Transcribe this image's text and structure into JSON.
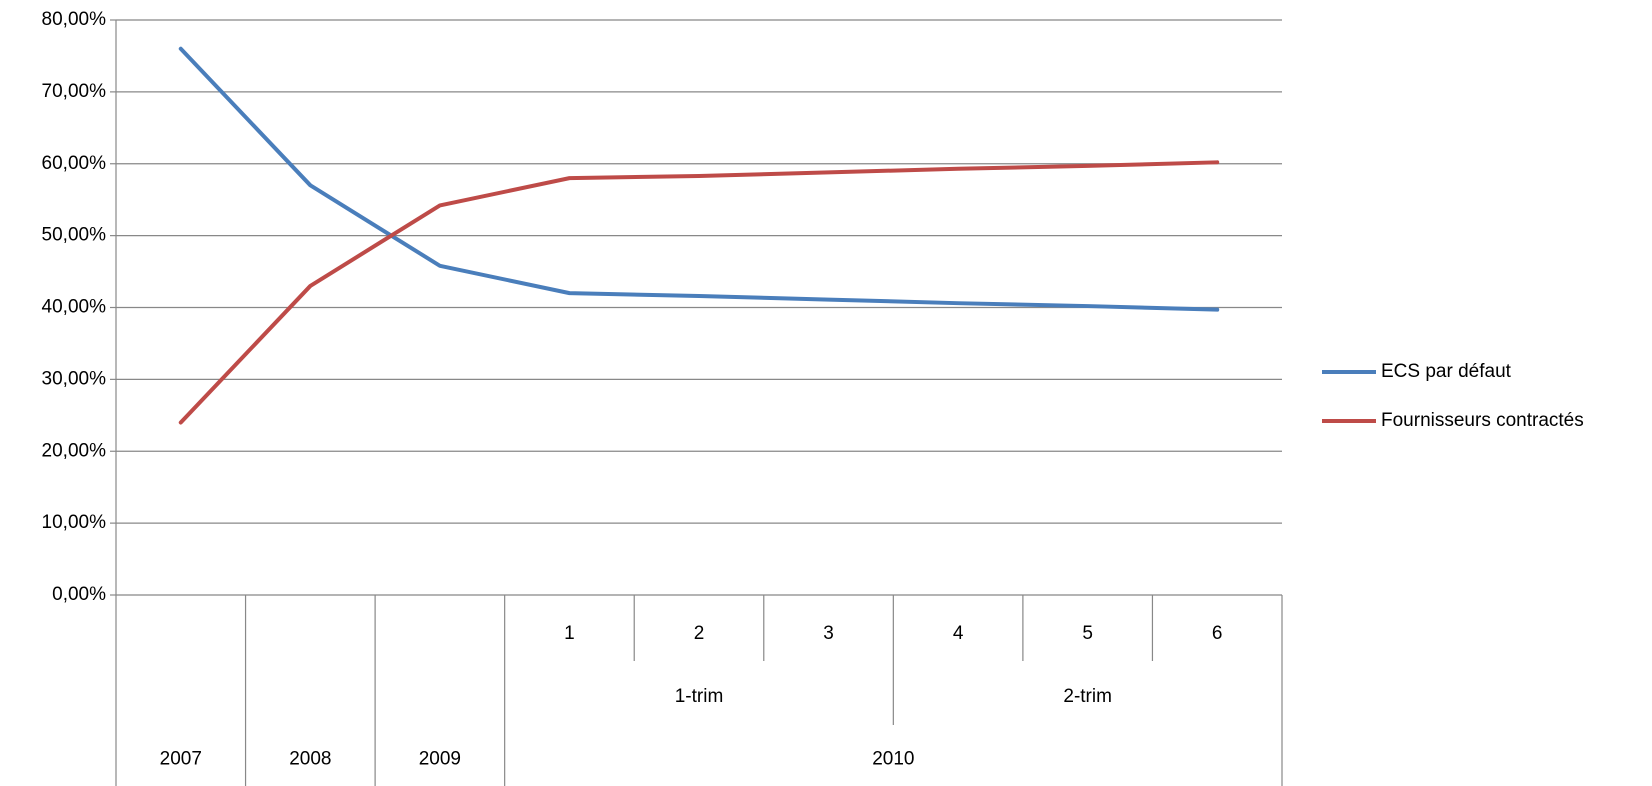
{
  "chart_data": {
    "type": "line",
    "categories": [
      null,
      null,
      null,
      "1",
      "2",
      "3",
      "4",
      "5",
      "6"
    ],
    "quarters": [
      null,
      null,
      null,
      "1-trim",
      "1-trim",
      "1-trim",
      "2-trim",
      "2-trim",
      "2-trim"
    ],
    "years": [
      "2007",
      "2008",
      "2009",
      "2010",
      "2010",
      "2010",
      "2010",
      "2010",
      "2010"
    ],
    "series": [
      {
        "name": "ECS par défaut",
        "color": "#4a7ebb",
        "values": [
          76,
          57,
          45.8,
          42,
          41.6,
          41.1,
          40.6,
          40.2,
          39.7
        ]
      },
      {
        "name": "Fournisseurs contractés",
        "color": "#be4b48",
        "values": [
          24,
          43,
          54.2,
          58,
          58.3,
          58.8,
          59.3,
          59.7,
          60.2
        ]
      }
    ],
    "ylim": [
      0,
      80
    ],
    "yticks": [
      {
        "value": 0,
        "label": "0,00%"
      },
      {
        "value": 10,
        "label": "10,00%"
      },
      {
        "value": 20,
        "label": "20,00%"
      },
      {
        "value": 30,
        "label": "30,00%"
      },
      {
        "value": 40,
        "label": "40,00%"
      },
      {
        "value": 50,
        "label": "50,00%"
      },
      {
        "value": 60,
        "label": "60,00%"
      },
      {
        "value": 70,
        "label": "70,00%"
      },
      {
        "value": 80,
        "label": "80,00%"
      }
    ],
    "grid": true,
    "legend": "right"
  }
}
